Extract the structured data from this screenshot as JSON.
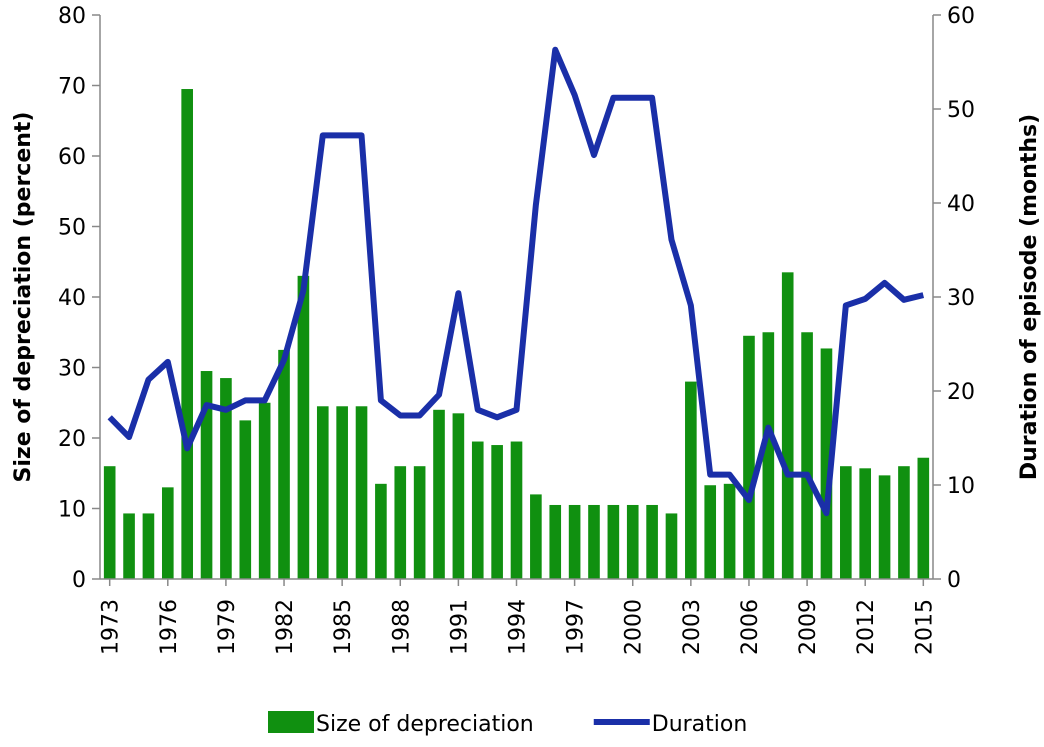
{
  "chart_data": {
    "type": "bar-line",
    "categories": [
      "1973",
      null,
      null,
      "1976",
      null,
      null,
      "1979",
      null,
      null,
      "1982",
      null,
      null,
      "1985",
      null,
      null,
      "1988",
      null,
      null,
      "1991",
      null,
      null,
      "1994",
      null,
      null,
      "1997",
      null,
      null,
      "2000",
      null,
      null,
      "2003",
      null,
      null,
      "2006",
      null,
      null,
      "2009",
      null,
      null,
      "2012",
      null,
      null,
      "2015"
    ],
    "series": [
      {
        "name": "Size of depreciation",
        "type": "bar",
        "color": "#109010",
        "values": [
          16,
          9.3,
          9.3,
          13,
          69.5,
          29.5,
          28.5,
          22.5,
          25,
          32.5,
          43,
          24.5,
          24.5,
          24.5,
          13.5,
          16,
          16,
          24,
          23.5,
          19.5,
          19,
          19.5,
          12,
          10.5,
          10.5,
          10.5,
          10.5,
          10.5,
          10.5,
          9.3,
          28,
          13.3,
          13.5,
          34.5,
          35,
          43.5,
          35,
          32.7,
          16,
          15.7,
          14.7,
          16,
          17.2
        ]
      },
      {
        "name": "Duration",
        "type": "line",
        "axis": "y2",
        "color": "#1a2fa8",
        "values": [
          17.2,
          15.1,
          21.2,
          23.1,
          13.9,
          18.5,
          18,
          19,
          19,
          23.3,
          30.7,
          47.2,
          47.2,
          47.2,
          19,
          17.4,
          17.4,
          19.6,
          30.4,
          18,
          17.2,
          18,
          39.8,
          56.3,
          51.5,
          45.1,
          51.2,
          51.2,
          51.2,
          36.1,
          29.1,
          11.1,
          11.1,
          8.4,
          16.1,
          11.1,
          11.1,
          7,
          29.1,
          29.8,
          31.5,
          29.7,
          30.2
        ]
      }
    ],
    "ylabel": "Size of depreciation (percent)",
    "y2label": "Duration of episode (months)",
    "ylim": [
      0,
      80
    ],
    "yticks": [
      0,
      10,
      20,
      30,
      40,
      50,
      60,
      70,
      80
    ],
    "y2lim": [
      0,
      60
    ],
    "y2ticks": [
      0,
      10,
      20,
      30,
      40,
      50,
      60
    ],
    "legend": "bottom"
  }
}
